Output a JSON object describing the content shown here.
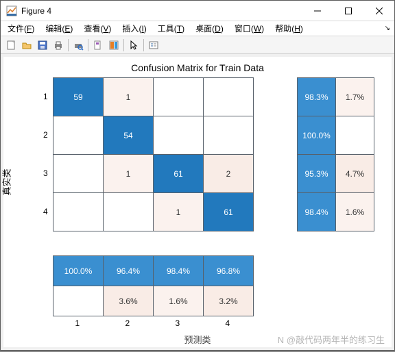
{
  "window": {
    "title": "Figure 4"
  },
  "menu": {
    "items": [
      {
        "label": "文件",
        "key": "F"
      },
      {
        "label": "编辑",
        "key": "E"
      },
      {
        "label": "查看",
        "key": "V"
      },
      {
        "label": "插入",
        "key": "I"
      },
      {
        "label": "工具",
        "key": "T"
      },
      {
        "label": "桌面",
        "key": "D"
      },
      {
        "label": "窗口",
        "key": "W"
      },
      {
        "label": "帮助",
        "key": "H"
      }
    ]
  },
  "plot": {
    "title": "Confusion Matrix for Train Data",
    "ylabel": "真实类",
    "xlabel": "预测类",
    "colors": {
      "blue": "#2279bd",
      "lightblue": "#3a8fd0",
      "pale1": "#fbf2ee",
      "pale2": "#f9ece6",
      "white": "#ffffff",
      "border": "#57606a",
      "text_dark": "#333333",
      "text_light": "#ffffff"
    },
    "main_matrix": {
      "row_ticks": [
        "1",
        "2",
        "3",
        "4"
      ],
      "col_ticks": [
        "1",
        "2",
        "3",
        "4"
      ],
      "cells": [
        [
          {
            "v": "59",
            "c": "blue",
            "t": "light"
          },
          {
            "v": "1",
            "c": "pale1",
            "t": "dark"
          },
          {
            "v": "",
            "c": "white"
          },
          {
            "v": "",
            "c": "white"
          }
        ],
        [
          {
            "v": "",
            "c": "white"
          },
          {
            "v": "54",
            "c": "blue",
            "t": "light"
          },
          {
            "v": "",
            "c": "white"
          },
          {
            "v": "",
            "c": "white"
          }
        ],
        [
          {
            "v": "",
            "c": "white"
          },
          {
            "v": "1",
            "c": "pale1",
            "t": "dark"
          },
          {
            "v": "61",
            "c": "blue",
            "t": "light"
          },
          {
            "v": "2",
            "c": "pale2",
            "t": "dark"
          }
        ],
        [
          {
            "v": "",
            "c": "white"
          },
          {
            "v": "",
            "c": "white"
          },
          {
            "v": "1",
            "c": "pale1",
            "t": "dark"
          },
          {
            "v": "61",
            "c": "blue",
            "t": "light"
          }
        ]
      ]
    },
    "row_summary": {
      "cells": [
        [
          {
            "v": "98.3%",
            "c": "lightblue",
            "t": "light"
          },
          {
            "v": "1.7%",
            "c": "pale1",
            "t": "dark"
          }
        ],
        [
          {
            "v": "100.0%",
            "c": "lightblue",
            "t": "light"
          },
          {
            "v": "",
            "c": "white"
          }
        ],
        [
          {
            "v": "95.3%",
            "c": "lightblue",
            "t": "light"
          },
          {
            "v": "4.7%",
            "c": "pale2",
            "t": "dark"
          }
        ],
        [
          {
            "v": "98.4%",
            "c": "lightblue",
            "t": "light"
          },
          {
            "v": "1.6%",
            "c": "pale1",
            "t": "dark"
          }
        ]
      ]
    },
    "col_summary": {
      "cells": [
        [
          {
            "v": "100.0%",
            "c": "lightblue",
            "t": "light"
          },
          {
            "v": "96.4%",
            "c": "lightblue",
            "t": "light"
          },
          {
            "v": "98.4%",
            "c": "lightblue",
            "t": "light"
          },
          {
            "v": "96.8%",
            "c": "lightblue",
            "t": "light"
          }
        ],
        [
          {
            "v": "",
            "c": "white"
          },
          {
            "v": "3.6%",
            "c": "pale2",
            "t": "dark"
          },
          {
            "v": "1.6%",
            "c": "pale1",
            "t": "dark"
          },
          {
            "v": "3.2%",
            "c": "pale2",
            "t": "dark"
          }
        ]
      ]
    }
  },
  "watermark": "N @敲代码两年半的练习生"
}
